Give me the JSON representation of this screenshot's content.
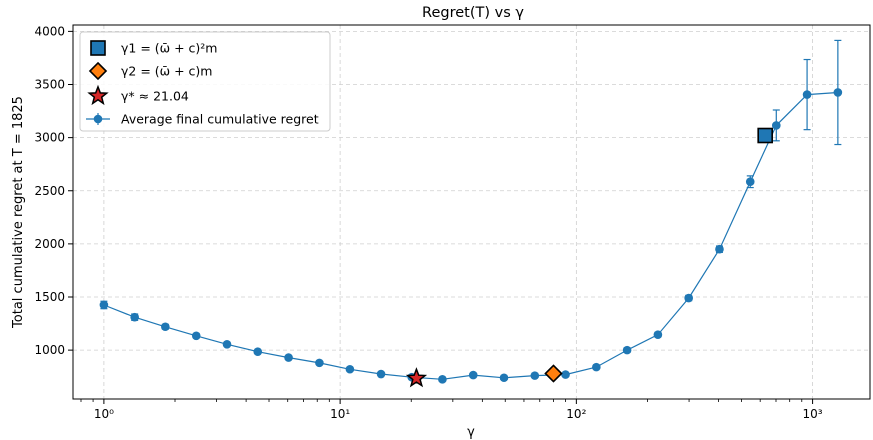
{
  "chart_data": {
    "type": "line",
    "title": "Regret(T) vs γ",
    "xlabel": "γ",
    "ylabel": "Total cumulative regret at T = 1825",
    "xscale": "log",
    "xlim": [
      0.74,
      1750
    ],
    "ylim": [
      540,
      4060
    ],
    "grid": true,
    "legend_position": "upper-left",
    "x_ticks": [
      {
        "value": 1,
        "label": "10⁰"
      },
      {
        "value": 10,
        "label": "10¹"
      },
      {
        "value": 100,
        "label": "10²"
      },
      {
        "value": 1000,
        "label": "10³"
      }
    ],
    "y_ticks": [
      1000,
      1500,
      2000,
      2500,
      3000,
      3500,
      4000
    ],
    "colors": {
      "series": "#1f77b4",
      "gamma1": "#1f77b4",
      "gamma2": "#ff7f0e",
      "gamma_star": "#d62728",
      "grid": "#cfcfcf"
    },
    "series": [
      {
        "name": "Average final cumulative regret",
        "x": [
          1.0,
          1.35,
          1.82,
          2.46,
          3.32,
          4.48,
          6.05,
          8.17,
          11.0,
          14.9,
          20.1,
          27.1,
          36.6,
          49.4,
          66.7,
          90.0,
          121.5,
          164.0,
          221.4,
          298.9,
          403.5,
          544.7,
          702.0,
          947.7,
          1279.4
        ],
        "y": [
          1425,
          1310,
          1220,
          1135,
          1055,
          985,
          930,
          880,
          820,
          775,
          745,
          725,
          765,
          740,
          760,
          770,
          840,
          1000,
          1145,
          1490,
          1950,
          2585,
          3115,
          3405,
          3425
        ],
        "err": [
          35,
          30,
          22,
          18,
          15,
          12,
          12,
          12,
          12,
          12,
          12,
          12,
          12,
          12,
          12,
          12,
          15,
          20,
          20,
          25,
          30,
          55,
          145,
          330,
          490
        ]
      }
    ],
    "markers": [
      {
        "name": "γ1 = (ω̄ + c)²m",
        "shape": "square",
        "x": 630,
        "y": 3020
      },
      {
        "name": "γ2 = (ω̄ + c)m",
        "shape": "diamond",
        "x": 80,
        "y": 780
      },
      {
        "name": "γ* ≈ 21.04",
        "shape": "star",
        "x": 21.04,
        "y": 735
      }
    ]
  }
}
